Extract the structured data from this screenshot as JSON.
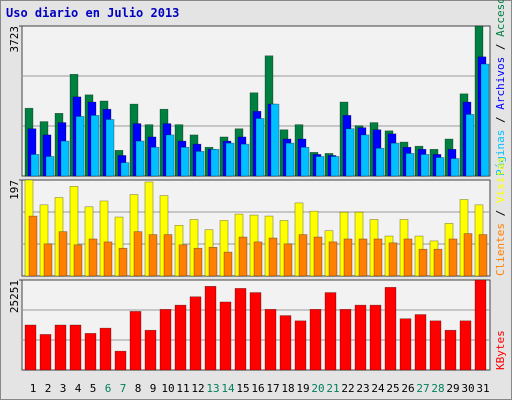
{
  "chart_data": [
    {
      "type": "bar",
      "title": "Uso diario en Julio 2013",
      "categories": [
        "1",
        "2",
        "3",
        "4",
        "5",
        "6",
        "7",
        "8",
        "9",
        "10",
        "11",
        "12",
        "13",
        "14",
        "15",
        "16",
        "17",
        "18",
        "19",
        "20",
        "21",
        "22",
        "23",
        "24",
        "25",
        "26",
        "27",
        "28",
        "29",
        "30",
        "31"
      ],
      "category_colors": [
        "#000000",
        "#000000",
        "#000000",
        "#000000",
        "#000000",
        "#00805c",
        "#00805c",
        "#000000",
        "#000000",
        "#000000",
        "#000000",
        "#000000",
        "#00805c",
        "#00805c",
        "#000000",
        "#000000",
        "#000000",
        "#000000",
        "#000000",
        "#00805c",
        "#00805c",
        "#000000",
        "#000000",
        "#000000",
        "#000000",
        "#000000",
        "#00805c",
        "#00805c",
        "#000000",
        "#000000",
        "#000000"
      ],
      "ylim": [
        0,
        3723
      ],
      "yticks": [
        3723
      ],
      "series": [
        {
          "name": "Accesos",
          "color": "#008040",
          "values": [
            1683,
            1351,
            1556,
            2525,
            2015,
            1862,
            638,
            1785,
            1275,
            1658,
            1275,
            1020,
            714,
            969,
            1173,
            2066,
            2984,
            1148,
            1275,
            587,
            561,
            1836,
            1250,
            1326,
            1122,
            842,
            740,
            663,
            918,
            2040,
            3723
          ]
        },
        {
          "name": "Archivos",
          "color": "#0000ff",
          "values": [
            1173,
            1020,
            1326,
            1964,
            1836,
            1658,
            510,
            1301,
            969,
            1301,
            867,
            791,
            663,
            867,
            969,
            1607,
            1785,
            918,
            918,
            536,
            510,
            1505,
            1199,
            1148,
            1046,
            714,
            663,
            536,
            663,
            1836,
            2958
          ]
        },
        {
          "name": "Páginas",
          "color": "#00c0ff",
          "values": [
            536,
            485,
            867,
            1479,
            1505,
            1403,
            332,
            867,
            714,
            1020,
            714,
            612,
            663,
            816,
            791,
            1428,
            1785,
            816,
            714,
            485,
            485,
            1173,
            1020,
            689,
            816,
            561,
            536,
            459,
            434,
            1530,
            2779
          ]
        }
      ]
    },
    {
      "type": "bar",
      "ylim": [
        0,
        197
      ],
      "yticks": [
        197
      ],
      "series": [
        {
          "name": "Visitas",
          "color": "#ffff00",
          "values": [
            197,
            146,
            161,
            184,
            142,
            154,
            121,
            167,
            193,
            165,
            104,
            116,
            95,
            114,
            127,
            125,
            123,
            114,
            150,
            133,
            93,
            131,
            131,
            116,
            82,
            116,
            82,
            72,
            108,
            157,
            146
          ]
        },
        {
          "name": "Clientes",
          "color": "#ff8000",
          "values": [
            123,
            66,
            91,
            64,
            76,
            70,
            57,
            91,
            85,
            85,
            64,
            57,
            59,
            49,
            80,
            70,
            78,
            66,
            85,
            80,
            70,
            76,
            76,
            76,
            68,
            76,
            55,
            55,
            76,
            87,
            85
          ]
        }
      ]
    },
    {
      "type": "bar",
      "ylim": [
        0,
        25251
      ],
      "yticks": [
        25251
      ],
      "series": [
        {
          "name": "KBytes",
          "color": "#ff0000",
          "values": [
            12625,
            9983,
            12625,
            12625,
            10277,
            11745,
            5285,
            16442,
            11157,
            17030,
            18204,
            20553,
            23489,
            19085,
            22902,
            21728,
            17030,
            15268,
            13800,
            17030,
            21728,
            17030,
            18204,
            18204,
            23195,
            14387,
            15562,
            13800,
            11157,
            13800,
            25251
          ]
        }
      ]
    }
  ]
}
